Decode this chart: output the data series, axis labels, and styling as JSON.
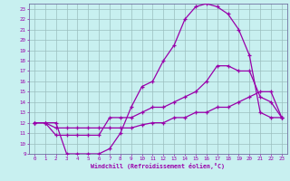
{
  "xlabel": "Windchill (Refroidissement éolien,°C)",
  "bg_color": "#c8f0f0",
  "grid_color": "#9bbebe",
  "line_color": "#9900aa",
  "spine_color": "#7070a0",
  "xlim": [
    -0.5,
    23.5
  ],
  "ylim": [
    9,
    23.5
  ],
  "xticks": [
    0,
    1,
    2,
    3,
    4,
    5,
    6,
    7,
    8,
    9,
    10,
    11,
    12,
    13,
    14,
    15,
    16,
    17,
    18,
    19,
    20,
    21,
    22,
    23
  ],
  "yticks": [
    9,
    10,
    11,
    12,
    13,
    14,
    15,
    16,
    17,
    18,
    19,
    20,
    21,
    22,
    23
  ],
  "line1_x": [
    0,
    1,
    2,
    3,
    4,
    5,
    6,
    7,
    8,
    9,
    10,
    11,
    12,
    13,
    14,
    15,
    16,
    17,
    18,
    19,
    20,
    21,
    22,
    23
  ],
  "line1_y": [
    12,
    12,
    12,
    9,
    9,
    9,
    9,
    9.5,
    11,
    13.5,
    15.5,
    16,
    18,
    19.5,
    22,
    23.2,
    23.5,
    23.2,
    22.5,
    21,
    18.5,
    13,
    12.5,
    12.5
  ],
  "line2_x": [
    0,
    1,
    2,
    3,
    4,
    5,
    6,
    7,
    8,
    9,
    10,
    11,
    12,
    13,
    14,
    15,
    16,
    17,
    18,
    19,
    20,
    21,
    22,
    23
  ],
  "line2_y": [
    12,
    12,
    10.8,
    10.8,
    10.8,
    10.8,
    10.8,
    12.5,
    12.5,
    12.5,
    13,
    13.5,
    13.5,
    14,
    14.5,
    15,
    16,
    17.5,
    17.5,
    17,
    17,
    14.5,
    14.0,
    12.5
  ],
  "line3_x": [
    0,
    1,
    2,
    3,
    4,
    5,
    6,
    7,
    8,
    9,
    10,
    11,
    12,
    13,
    14,
    15,
    16,
    17,
    18,
    19,
    20,
    21,
    22,
    23
  ],
  "line3_y": [
    12,
    12,
    11.5,
    11.5,
    11.5,
    11.5,
    11.5,
    11.5,
    11.5,
    11.5,
    11.8,
    12,
    12,
    12.5,
    12.5,
    13,
    13,
    13.5,
    13.5,
    14,
    14.5,
    15,
    15,
    12.5
  ]
}
